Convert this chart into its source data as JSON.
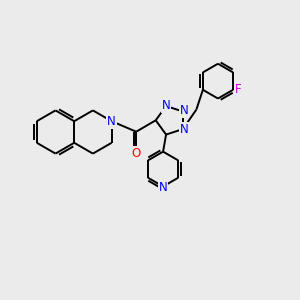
{
  "bg_color": "#ebebeb",
  "bond_color": "#000000",
  "n_color": "#0000ff",
  "o_color": "#ff0000",
  "f_color": "#cc00cc",
  "line_width": 1.4,
  "font_size": 8.5,
  "xlim": [
    0,
    10
  ],
  "ylim": [
    0,
    10
  ]
}
